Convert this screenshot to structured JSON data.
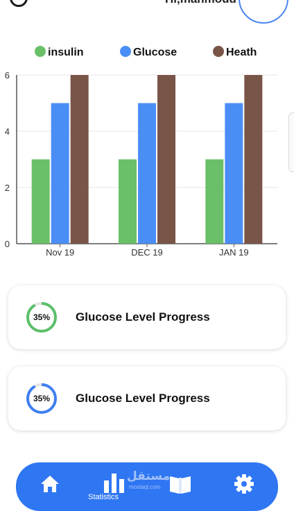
{
  "header": {
    "greeting": "Hi,mahmoud"
  },
  "chart_data": {
    "type": "bar",
    "categories": [
      "Nov 19",
      "DEC 19",
      "JAN 19"
    ],
    "series": [
      {
        "name": "insulin",
        "values": [
          3,
          3,
          3
        ],
        "color": "#6abf69"
      },
      {
        "name": "Glucose",
        "values": [
          5,
          5,
          5
        ],
        "color": "#4a8ef5"
      },
      {
        "name": "Heath",
        "values": [
          6,
          6,
          6
        ],
        "color": "#795548"
      }
    ],
    "ylim": [
      0,
      6
    ],
    "yticks": [
      0,
      2,
      4,
      6
    ],
    "grid": true,
    "legend": "top"
  },
  "cards": [
    {
      "percent_label": "35%",
      "progress": 0.35,
      "title": "Glucose Level Progress",
      "color": "#5cbf6a"
    },
    {
      "percent_label": "35%",
      "progress": 0.35,
      "title": "Glucose Level Progress",
      "color": "#3f7ff0"
    }
  ],
  "bottom_nav": {
    "active_label": "Statistics",
    "items": [
      "home-icon",
      "bar-chart-icon",
      "book-icon",
      "gear-icon"
    ]
  },
  "watermark": {
    "text": "مستقل",
    "sub": "mostaql.com"
  }
}
